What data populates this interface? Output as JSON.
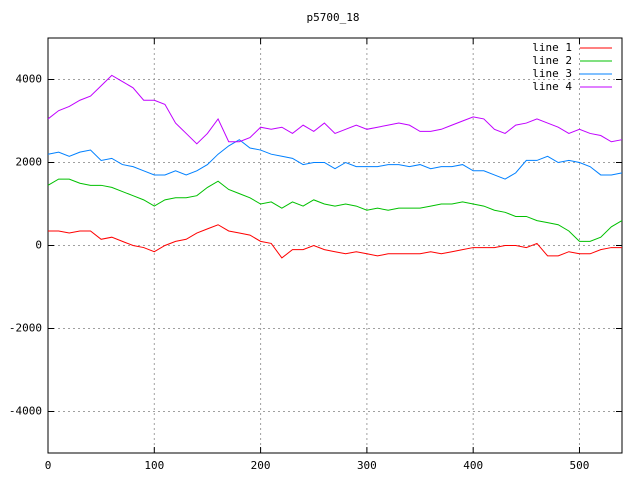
{
  "chart_data": {
    "type": "line",
    "title": "p5700_18",
    "x": [
      0,
      10,
      20,
      30,
      40,
      50,
      60,
      70,
      80,
      90,
      100,
      110,
      120,
      130,
      140,
      150,
      160,
      170,
      180,
      190,
      200,
      210,
      220,
      230,
      240,
      250,
      260,
      270,
      280,
      290,
      300,
      310,
      320,
      330,
      340,
      350,
      360,
      370,
      380,
      390,
      400,
      410,
      420,
      430,
      440,
      450,
      460,
      470,
      480,
      490,
      500,
      510,
      520,
      530,
      540
    ],
    "series": [
      {
        "name": "line 1",
        "color": "#ff0000",
        "values": [
          350,
          350,
          300,
          350,
          350,
          150,
          200,
          100,
          0,
          -50,
          -150,
          0,
          100,
          150,
          300,
          400,
          500,
          350,
          300,
          250,
          100,
          50,
          -300,
          -100,
          -100,
          0,
          -100,
          -150,
          -200,
          -150,
          -200,
          -250,
          -200,
          -200,
          -200,
          -200,
          -150,
          -200,
          -150,
          -100,
          -50,
          -50,
          -50,
          0,
          0,
          -50,
          50,
          -250,
          -250,
          -150,
          -200,
          -200,
          -100,
          -50,
          -50
        ]
      },
      {
        "name": "line 2",
        "color": "#00c000",
        "values": [
          1450,
          1600,
          1600,
          1500,
          1450,
          1450,
          1400,
          1300,
          1200,
          1100,
          950,
          1100,
          1150,
          1150,
          1200,
          1400,
          1550,
          1350,
          1250,
          1150,
          1000,
          1050,
          900,
          1050,
          950,
          1100,
          1000,
          950,
          1000,
          950,
          850,
          900,
          850,
          900,
          900,
          900,
          950,
          1000,
          1000,
          1050,
          1000,
          950,
          850,
          800,
          700,
          700,
          600,
          550,
          500,
          350,
          100,
          100,
          200,
          450,
          600
        ]
      },
      {
        "name": "line 3",
        "color": "#0080ff",
        "values": [
          2200,
          2250,
          2150,
          2250,
          2300,
          2050,
          2100,
          1950,
          1900,
          1800,
          1700,
          1700,
          1800,
          1700,
          1800,
          1950,
          2200,
          2400,
          2550,
          2350,
          2300,
          2200,
          2150,
          2100,
          1950,
          2000,
          2000,
          1850,
          2000,
          1900,
          1900,
          1900,
          1950,
          1950,
          1900,
          1950,
          1850,
          1900,
          1900,
          1950,
          1800,
          1800,
          1700,
          1600,
          1750,
          2050,
          2050,
          2150,
          2000,
          2050,
          2000,
          1900,
          1700,
          1700,
          1750
        ]
      },
      {
        "name": "line 4",
        "color": "#c000ff",
        "values": [
          3050,
          3250,
          3350,
          3500,
          3600,
          3850,
          4100,
          3950,
          3800,
          3500,
          3500,
          3400,
          2950,
          2700,
          2450,
          2700,
          3050,
          2500,
          2500,
          2600,
          2850,
          2800,
          2850,
          2700,
          2900,
          2750,
          2950,
          2700,
          2800,
          2900,
          2800,
          2850,
          2900,
          2950,
          2900,
          2750,
          2750,
          2800,
          2900,
          3000,
          3100,
          3050,
          2800,
          2700,
          2900,
          2950,
          3050,
          2950,
          2850,
          2700,
          2800,
          2700,
          2650,
          2500,
          2550
        ]
      }
    ],
    "xlim": [
      0,
      540
    ],
    "xticks": [
      0,
      100,
      200,
      300,
      400,
      500
    ],
    "ylim": [
      -5000,
      5000
    ],
    "yticks": [
      -4000,
      -2000,
      0,
      2000,
      4000
    ],
    "grid": true,
    "legend": "top-right"
  }
}
